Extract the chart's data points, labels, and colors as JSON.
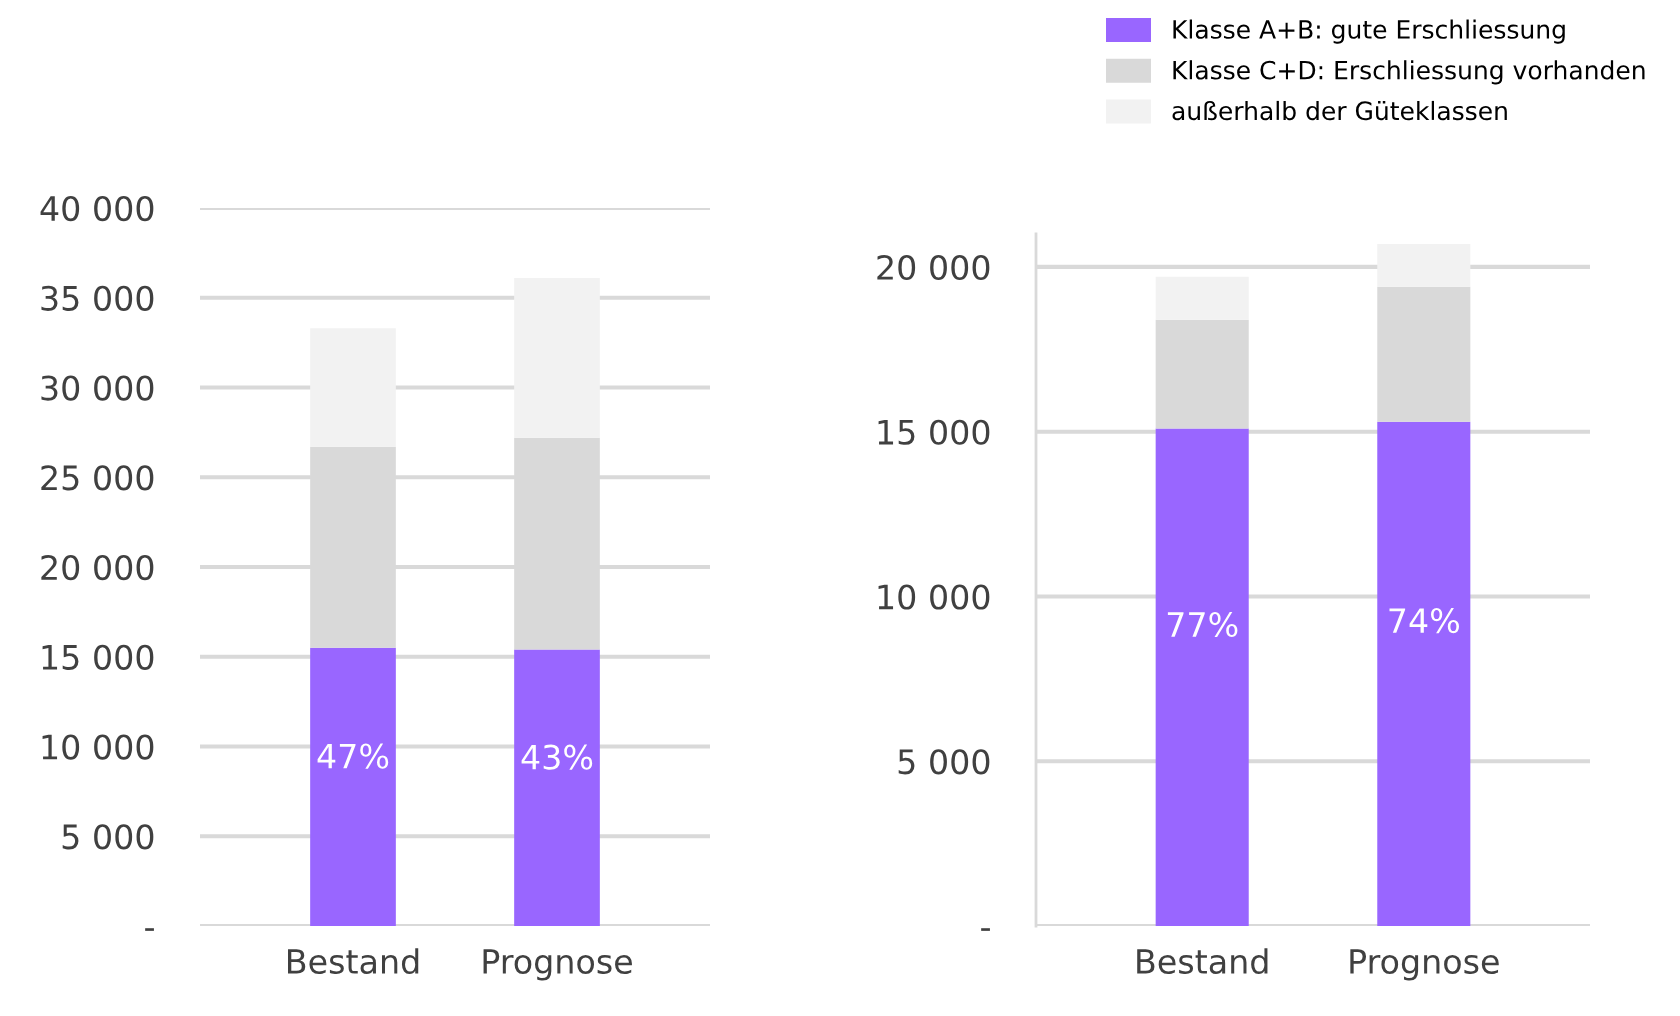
{
  "chart_data": [
    {
      "type": "bar",
      "stacked": true,
      "categories": [
        "Bestand",
        "Prognose"
      ],
      "ylim": [
        0,
        40000
      ],
      "yticks": [
        {
          "value": 0,
          "label": "-"
        },
        {
          "value": 5000,
          "label": "5 000"
        },
        {
          "value": 10000,
          "label": "10 000"
        },
        {
          "value": 15000,
          "label": "15 000"
        },
        {
          "value": 20000,
          "label": "20 000"
        },
        {
          "value": 25000,
          "label": "25 000"
        },
        {
          "value": 30000,
          "label": "30 000"
        },
        {
          "value": 35000,
          "label": "35 000"
        },
        {
          "value": 40000,
          "label": "40 000"
        }
      ],
      "grid": "y",
      "legend": false,
      "annotations": [
        "47%",
        "43%"
      ],
      "series": [
        {
          "color": "#9966ff",
          "values": [
            15500,
            15400
          ]
        },
        {
          "color": "#d9d9d9",
          "values": [
            11200,
            11800
          ]
        },
        {
          "color": "#f2f2f2",
          "values": [
            6600,
            8900
          ]
        }
      ]
    },
    {
      "type": "bar",
      "stacked": true,
      "categories": [
        "Bestand",
        "Prognose"
      ],
      "ylim": [
        0,
        21000
      ],
      "yticks": [
        {
          "value": 0,
          "label": "-"
        },
        {
          "value": 5000,
          "label": "5 000"
        },
        {
          "value": 10000,
          "label": "10 000"
        },
        {
          "value": 15000,
          "label": "15 000"
        },
        {
          "value": 20000,
          "label": "20 000"
        }
      ],
      "grid": "y",
      "legend": "top",
      "annotations": [
        "77%",
        "74%"
      ],
      "series": [
        {
          "name": "Klasse A+B: gute Erschliessung",
          "color": "#9966ff",
          "values": [
            15100,
            15300
          ]
        },
        {
          "name": "Klasse C+D: Erschliessung vorhanden",
          "color": "#d9d9d9",
          "values": [
            3300,
            4100
          ]
        },
        {
          "name": "außerhalb der Güteklassen",
          "color": "#f2f2f2",
          "values": [
            1300,
            1300
          ]
        }
      ]
    }
  ]
}
